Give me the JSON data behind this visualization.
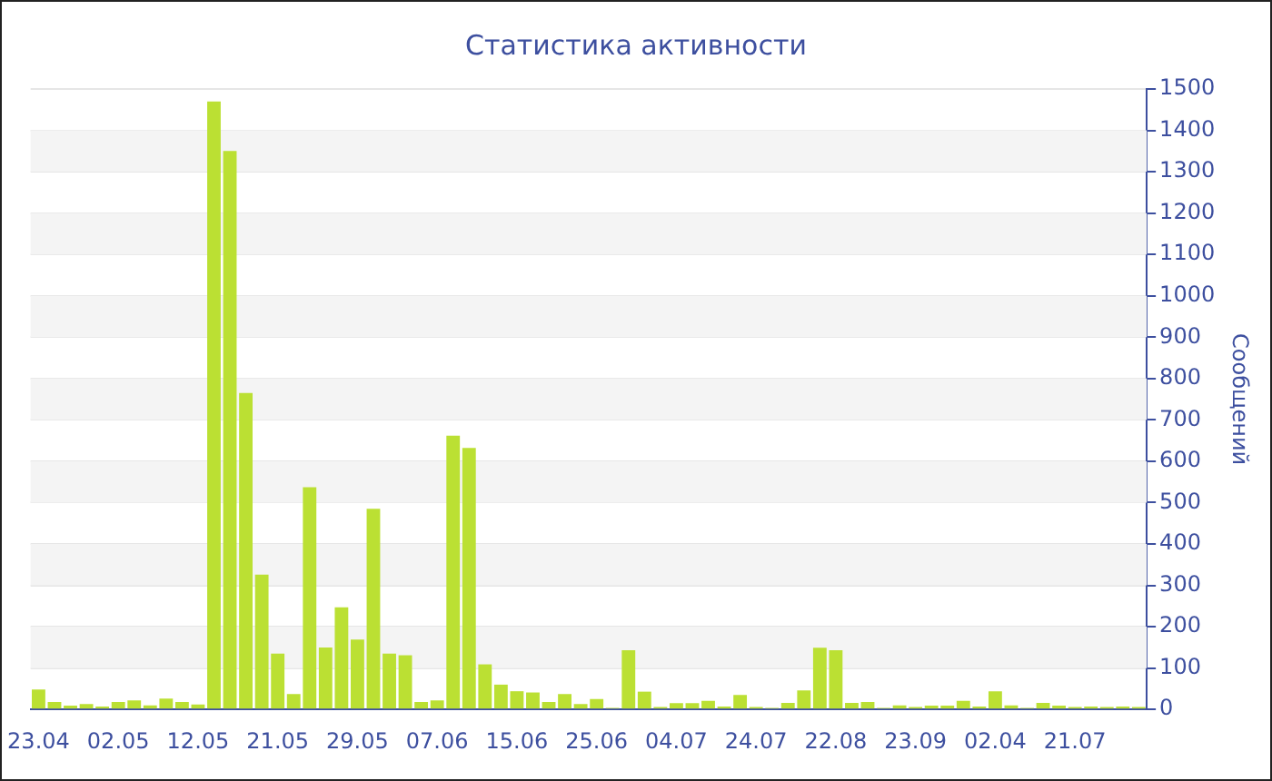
{
  "chart_data": {
    "type": "bar",
    "title": "Статистика активности",
    "ylabel": "Сообщений",
    "categories": [
      "23.04",
      null,
      null,
      null,
      null,
      "02.05",
      null,
      null,
      null,
      null,
      "12.05",
      null,
      null,
      null,
      null,
      "21.05",
      null,
      null,
      null,
      null,
      "29.05",
      null,
      null,
      null,
      null,
      "07.06",
      null,
      null,
      null,
      null,
      "15.06",
      null,
      null,
      null,
      null,
      "25.06",
      null,
      null,
      null,
      null,
      "04.07",
      null,
      null,
      null,
      null,
      "24.07",
      null,
      null,
      null,
      null,
      "22.08",
      null,
      null,
      null,
      null,
      "23.09",
      null,
      null,
      null,
      null,
      "02.04",
      null,
      null,
      null,
      null,
      "21.07",
      null,
      null,
      null,
      null
    ],
    "values": [
      48,
      18,
      9,
      13,
      7,
      18,
      22,
      10,
      26,
      18,
      12,
      1470,
      1350,
      765,
      326,
      135,
      37,
      537,
      150,
      247,
      169,
      485,
      135,
      131,
      18,
      22,
      662,
      632,
      109,
      60,
      44,
      41,
      18,
      37,
      13,
      25,
      4,
      143,
      43,
      6,
      15,
      15,
      21,
      7,
      35,
      6,
      4,
      16,
      46,
      149,
      143,
      16,
      18,
      4,
      10,
      6,
      9,
      9,
      21,
      7,
      44,
      10,
      4,
      16,
      9,
      6,
      7,
      6,
      7,
      6
    ],
    "color": "#bbe033",
    "ylim": [
      0,
      1500
    ],
    "yticks": [
      0,
      100,
      200,
      300,
      400,
      500,
      600,
      700,
      800,
      900,
      1000,
      1100,
      1200,
      1300,
      1400,
      1500
    ],
    "grid": "y"
  }
}
